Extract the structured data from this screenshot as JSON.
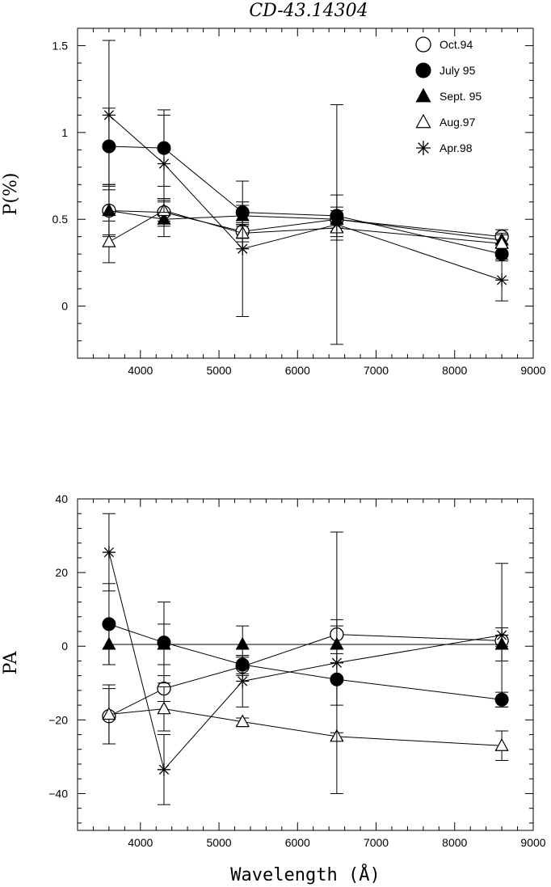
{
  "figure_title": "CD-43.14304",
  "legend": [
    {
      "label": "Oct.94",
      "marker": "circle-open"
    },
    {
      "label": "July 95",
      "marker": "circle-filled"
    },
    {
      "label": "Sept. 95",
      "marker": "triangle-filled"
    },
    {
      "label": "Aug.97",
      "marker": "triangle-open"
    },
    {
      "label": "Apr.98",
      "marker": "asterisk"
    }
  ],
  "chart_data": [
    {
      "type": "scatter",
      "title": "",
      "xlabel": "",
      "ylabel": "P(%)",
      "xlim": [
        3200,
        9000
      ],
      "ylim": [
        -0.3,
        1.6
      ],
      "xticks": [
        4000,
        5000,
        6000,
        7000,
        8000,
        9000
      ],
      "xtick_labels": [
        "4000",
        "5000",
        "6000",
        "7000",
        "8000",
        "9000"
      ],
      "yticks": [
        0,
        0.5,
        1,
        1.5
      ],
      "ytick_labels": [
        "0",
        "0.5",
        "1",
        "1.5"
      ],
      "grid": false,
      "legend_position": "top-right",
      "series": [
        {
          "name": "Oct.94",
          "marker": "circle-open",
          "x": [
            3600,
            4300,
            5300,
            6500,
            8600
          ],
          "y": [
            0.55,
            0.54,
            0.43,
            0.5,
            0.4
          ],
          "err": [
            0.15,
            0.08,
            0.04,
            0.05,
            0.04
          ]
        },
        {
          "name": "July 95",
          "marker": "circle-filled",
          "x": [
            3600,
            4300,
            5300,
            6500,
            8600
          ],
          "y": [
            0.92,
            0.91,
            0.54,
            0.52,
            0.3
          ],
          "err": [
            0.22,
            0.22,
            0.06,
            0.12,
            0.04
          ]
        },
        {
          "name": "Sept. 95",
          "marker": "triangle-filled",
          "x": [
            3600,
            4300,
            5300,
            6500,
            8600
          ],
          "y": [
            0.55,
            0.5,
            0.52,
            0.5,
            0.38
          ],
          "err": [
            0.14,
            0.1,
            0.06,
            0.07,
            0.04
          ]
        },
        {
          "name": "Aug.97",
          "marker": "triangle-open",
          "x": [
            3600,
            4300,
            5300,
            6500,
            8600
          ],
          "y": [
            0.37,
            0.55,
            0.42,
            0.45,
            0.36
          ],
          "err": [
            0.12,
            0.06,
            0.05,
            0.07,
            0.05
          ]
        },
        {
          "name": "Apr.98",
          "marker": "asterisk",
          "x": [
            3600,
            4300,
            5300,
            6500,
            8600
          ],
          "y": [
            1.1,
            0.82,
            0.33,
            0.47,
            0.15
          ],
          "err": [
            0.43,
            0.28,
            0.39,
            0.69,
            0.12
          ]
        }
      ]
    },
    {
      "type": "scatter",
      "title": "",
      "xlabel": "Wavelength (Å)",
      "ylabel": "PA",
      "xlim": [
        3200,
        9000
      ],
      "ylim": [
        -50,
        40
      ],
      "xticks": [
        4000,
        5000,
        6000,
        7000,
        8000,
        9000
      ],
      "xtick_labels": [
        "4000",
        "5000",
        "6000",
        "7000",
        "8000",
        "9000"
      ],
      "yticks": [
        -40,
        -20,
        0,
        20,
        40
      ],
      "ytick_labels": [
        "−40",
        "−20",
        "0",
        "20",
        "40"
      ],
      "grid": false,
      "series": [
        {
          "name": "Oct.94",
          "marker": "circle-open",
          "x": [
            3600,
            4300,
            5300,
            6500,
            8600
          ],
          "y": [
            -19,
            -11.5,
            -5.5,
            3.2,
            1.5
          ],
          "err": [
            7.5,
            3.5,
            2.5,
            4,
            1.5
          ]
        },
        {
          "name": "July 95",
          "marker": "circle-filled",
          "x": [
            3600,
            4300,
            5300,
            6500,
            8600
          ],
          "y": [
            6,
            1,
            -5,
            -9,
            -14.5
          ],
          "err": [
            11,
            11,
            2.5,
            7,
            2
          ]
        },
        {
          "name": "Sept. 95",
          "marker": "triangle-filled",
          "x": [
            3600,
            4300,
            5300,
            6500,
            8600
          ],
          "y": [
            0.5,
            0.5,
            0.5,
            0.5,
            0.5
          ],
          "err": [
            5.5,
            5.5,
            5,
            5,
            4.5
          ]
        },
        {
          "name": "Aug.97",
          "marker": "triangle-open",
          "x": [
            3600,
            4300,
            5300,
            6500,
            8600
          ],
          "y": [
            -18.5,
            -17,
            -20.5,
            -24.5,
            -27
          ],
          "err": [
            8,
            6,
            1,
            1,
            4
          ]
        },
        {
          "name": "Apr.98",
          "marker": "asterisk",
          "x": [
            3600,
            4300,
            5300,
            6500,
            8600
          ],
          "y": [
            25.5,
            -33.5,
            -9.5,
            -4.5,
            3
          ],
          "err": [
            10.5,
            9.5,
            7,
            35.5,
            19.5
          ]
        }
      ]
    }
  ]
}
